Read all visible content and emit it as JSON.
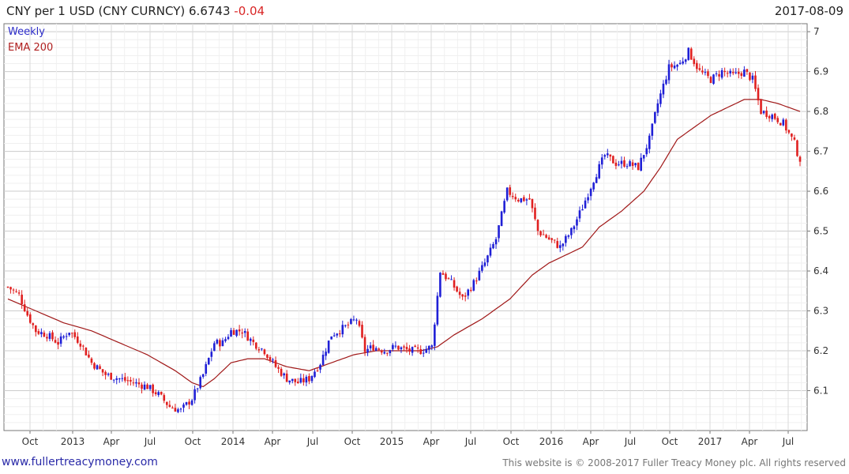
{
  "header": {
    "title": "CNY per 1 USD (CNY CURNCY) 6.6743",
    "change": "-0.04",
    "date": "2017-08-09"
  },
  "legend": {
    "weekly": "Weekly",
    "ema": "EMA 200"
  },
  "colors": {
    "up": "#1f1fd6",
    "down": "#e02020",
    "ema": "#a01818",
    "grid": "#dddddd",
    "change": "#d92626"
  },
  "footer": {
    "left": "www.fullertreacymoney.com",
    "right": "This website is © 2008-2017 Fuller Treacy Money plc. All rights reserved"
  },
  "chart_data": {
    "type": "candlestick",
    "frequency": "weekly",
    "y_axis_side": "right",
    "ylim": [
      6.0,
      7.02
    ],
    "y_ticks": [
      "6.1",
      "6.2",
      "6.3",
      "6.4",
      "6.5",
      "6.6",
      "6.7",
      "6.8",
      "6.9",
      "7"
    ],
    "x_ticks": [
      "Oct",
      "2013",
      "Apr",
      "Jul",
      "Oct",
      "2014",
      "Apr",
      "Jul",
      "Oct",
      "2015",
      "Apr",
      "Jul",
      "Oct",
      "2016",
      "Apr",
      "Jul",
      "Oct",
      "2017",
      "Apr",
      "Jul"
    ],
    "close_anchors": [
      [
        0,
        6.36
      ],
      [
        4,
        6.34
      ],
      [
        7,
        6.29
      ],
      [
        10,
        6.25
      ],
      [
        14,
        6.24
      ],
      [
        18,
        6.22
      ],
      [
        22,
        6.25
      ],
      [
        26,
        6.22
      ],
      [
        30,
        6.17
      ],
      [
        35,
        6.14
      ],
      [
        40,
        6.13
      ],
      [
        45,
        6.12
      ],
      [
        50,
        6.11
      ],
      [
        54,
        6.09
      ],
      [
        58,
        6.06
      ],
      [
        62,
        6.05
      ],
      [
        66,
        6.08
      ],
      [
        70,
        6.14
      ],
      [
        74,
        6.22
      ],
      [
        77,
        6.22
      ],
      [
        80,
        6.25
      ],
      [
        84,
        6.25
      ],
      [
        88,
        6.22
      ],
      [
        92,
        6.2
      ],
      [
        96,
        6.16
      ],
      [
        100,
        6.13
      ],
      [
        104,
        6.12
      ],
      [
        108,
        6.13
      ],
      [
        112,
        6.17
      ],
      [
        116,
        6.24
      ],
      [
        121,
        6.26
      ],
      [
        125,
        6.28
      ],
      [
        128,
        6.2
      ],
      [
        131,
        6.21
      ],
      [
        135,
        6.2
      ],
      [
        139,
        6.21
      ],
      [
        144,
        6.2
      ],
      [
        148,
        6.2
      ],
      [
        152,
        6.21
      ],
      [
        155,
        6.4
      ],
      [
        159,
        6.37
      ],
      [
        163,
        6.33
      ],
      [
        167,
        6.37
      ],
      [
        171,
        6.42
      ],
      [
        175,
        6.48
      ],
      [
        179,
        6.6
      ],
      [
        183,
        6.58
      ],
      [
        187,
        6.58
      ],
      [
        190,
        6.5
      ],
      [
        194,
        6.48
      ],
      [
        198,
        6.46
      ],
      [
        202,
        6.5
      ],
      [
        206,
        6.56
      ],
      [
        210,
        6.63
      ],
      [
        214,
        6.69
      ],
      [
        218,
        6.67
      ],
      [
        222,
        6.67
      ],
      [
        226,
        6.66
      ],
      [
        230,
        6.73
      ],
      [
        233,
        6.82
      ],
      [
        237,
        6.91
      ],
      [
        241,
        6.92
      ],
      [
        244,
        6.95
      ],
      [
        248,
        6.9
      ],
      [
        252,
        6.88
      ],
      [
        256,
        6.9
      ],
      [
        260,
        6.89
      ],
      [
        264,
        6.9
      ],
      [
        267,
        6.88
      ],
      [
        270,
        6.8
      ],
      [
        274,
        6.79
      ],
      [
        278,
        6.77
      ],
      [
        282,
        6.72
      ],
      [
        284,
        6.674
      ]
    ],
    "ema200_anchors": [
      [
        0,
        6.33
      ],
      [
        10,
        6.3
      ],
      [
        20,
        6.27
      ],
      [
        30,
        6.25
      ],
      [
        40,
        6.22
      ],
      [
        50,
        6.19
      ],
      [
        60,
        6.15
      ],
      [
        66,
        6.12
      ],
      [
        70,
        6.11
      ],
      [
        74,
        6.13
      ],
      [
        80,
        6.17
      ],
      [
        86,
        6.18
      ],
      [
        92,
        6.18
      ],
      [
        100,
        6.16
      ],
      [
        108,
        6.15
      ],
      [
        116,
        6.17
      ],
      [
        124,
        6.19
      ],
      [
        132,
        6.2
      ],
      [
        140,
        6.2
      ],
      [
        148,
        6.2
      ],
      [
        154,
        6.21
      ],
      [
        160,
        6.24
      ],
      [
        170,
        6.28
      ],
      [
        180,
        6.33
      ],
      [
        188,
        6.39
      ],
      [
        194,
        6.42
      ],
      [
        200,
        6.44
      ],
      [
        206,
        6.46
      ],
      [
        212,
        6.51
      ],
      [
        220,
        6.55
      ],
      [
        228,
        6.6
      ],
      [
        234,
        6.66
      ],
      [
        240,
        6.73
      ],
      [
        246,
        6.76
      ],
      [
        252,
        6.79
      ],
      [
        258,
        6.81
      ],
      [
        264,
        6.83
      ],
      [
        270,
        6.83
      ],
      [
        276,
        6.82
      ],
      [
        280,
        6.81
      ],
      [
        284,
        6.8
      ]
    ],
    "n_weeks": 285
  }
}
